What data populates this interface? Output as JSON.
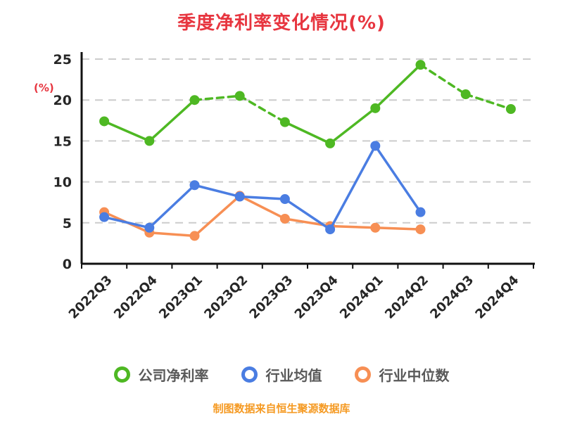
{
  "page": {
    "background": "#ffffff"
  },
  "footer_note": "制图数据来自恒生聚源数据库",
  "colors": {
    "title": "#e7353f",
    "ylabel": "#e7353f",
    "footer": "#f59a23",
    "axis": "#111111",
    "grid": "#cccccc",
    "tick_text": "#262626",
    "legend_text": "#595959"
  },
  "chart_data": {
    "type": "line",
    "title": "季度净利率变化情况(%)",
    "ylabel": "(%)",
    "xlabel": "",
    "ylim": [
      0,
      25
    ],
    "yticks": [
      0,
      5,
      10,
      15,
      20,
      25
    ],
    "grid": "horizontal-dashed",
    "legend_position": "bottom",
    "categories": [
      "2022Q3",
      "2022Q4",
      "2023Q1",
      "2023Q2",
      "2023Q3",
      "2023Q4",
      "2024Q1",
      "2024Q2",
      "2024Q3",
      "2024Q4"
    ],
    "series": [
      {
        "name": "公司净利率",
        "color": "#4eb823",
        "marker": "circle",
        "values": [
          17.4,
          15.0,
          20.0,
          20.5,
          17.3,
          14.7,
          19.0,
          24.3,
          20.7,
          18.9
        ],
        "dashed_segments": [
          [
            2,
            4
          ],
          [
            7,
            9
          ]
        ]
      },
      {
        "name": "行业均值",
        "color": "#4a7de2",
        "marker": "circle",
        "values": [
          5.7,
          4.4,
          9.6,
          8.2,
          7.9,
          4.2,
          14.4,
          6.3
        ]
      },
      {
        "name": "行业中位数",
        "color": "#f78f54",
        "marker": "circle",
        "values": [
          6.3,
          3.8,
          3.4,
          8.3,
          5.5,
          4.6,
          4.4,
          4.2
        ]
      }
    ]
  }
}
